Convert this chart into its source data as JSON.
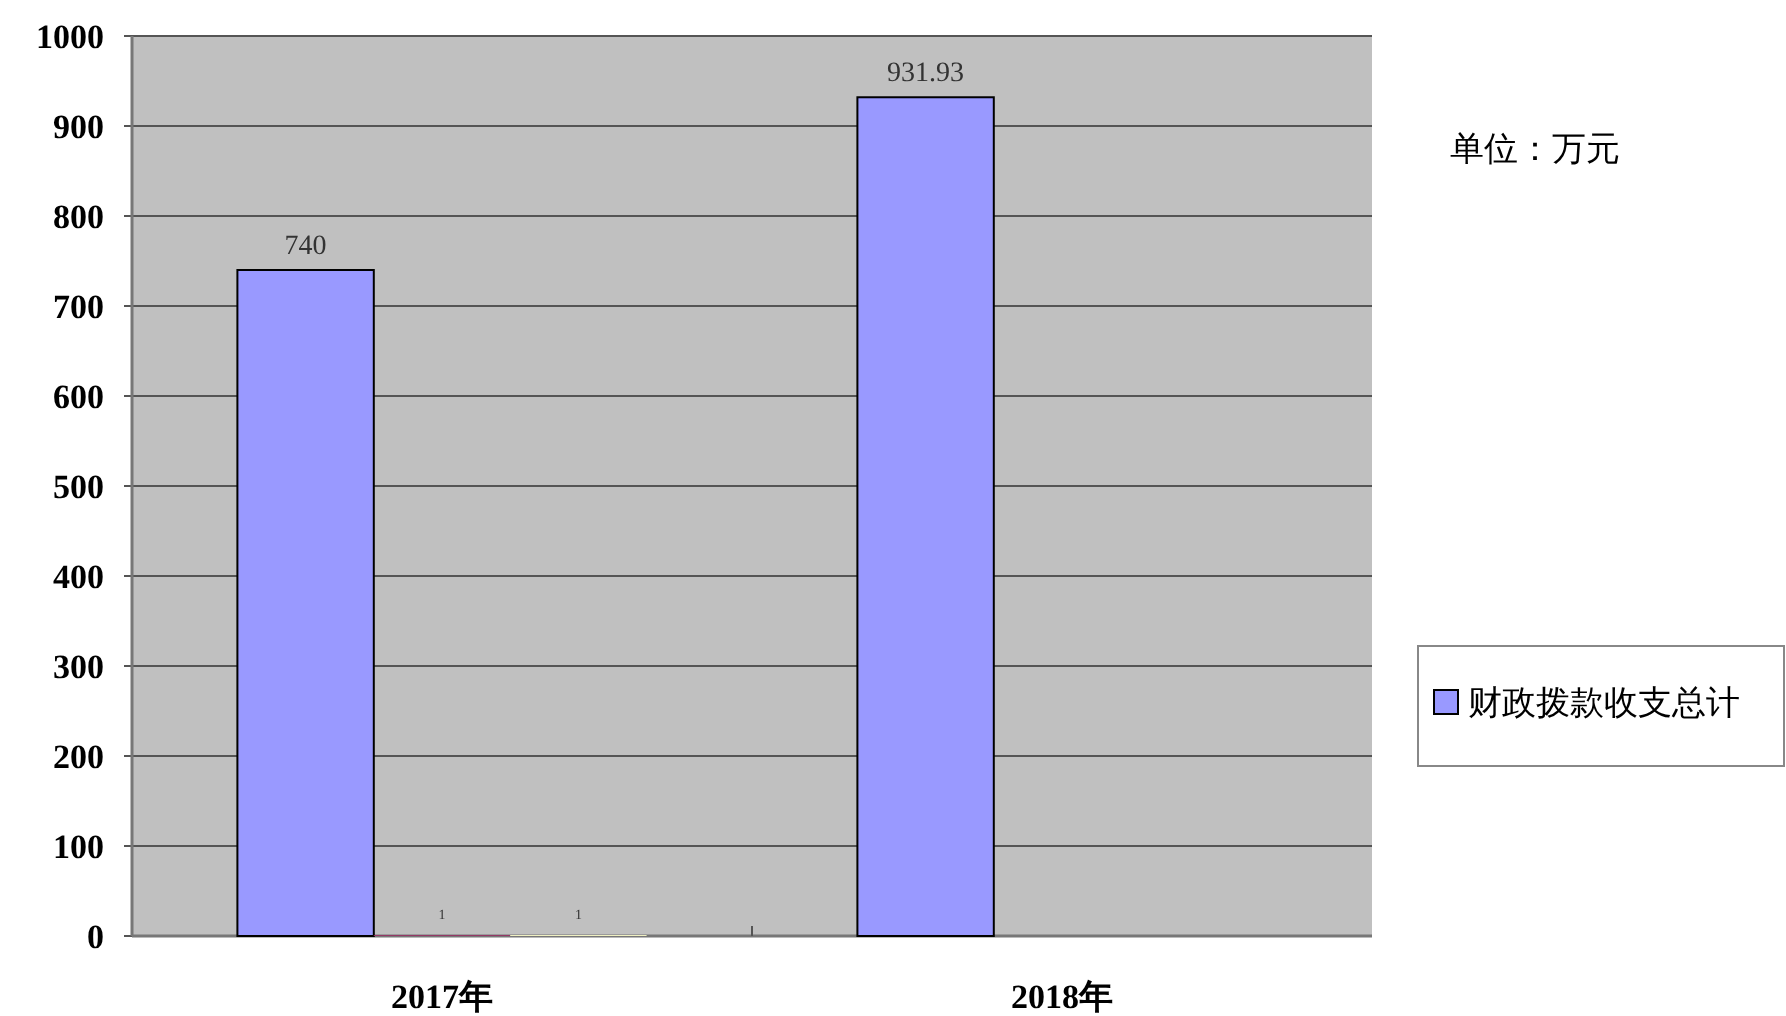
{
  "chart_data": {
    "type": "bar",
    "categories": [
      "2017年",
      "2018年"
    ],
    "series": [
      {
        "name": "财政拨款收支总计",
        "color": "#9999ff",
        "values": [
          740,
          931.93
        ]
      },
      {
        "color": "#993366",
        "values": [
          1,
          null
        ]
      },
      {
        "color": "#ffffcc",
        "values": [
          1,
          null
        ]
      }
    ],
    "ylim": [
      0,
      1000
    ],
    "yticks": [
      0,
      100,
      200,
      300,
      400,
      500,
      600,
      700,
      800,
      900,
      1000
    ],
    "grid": "y",
    "data_labels": true,
    "legend": "right",
    "annotations": [
      "单位：万元"
    ]
  }
}
